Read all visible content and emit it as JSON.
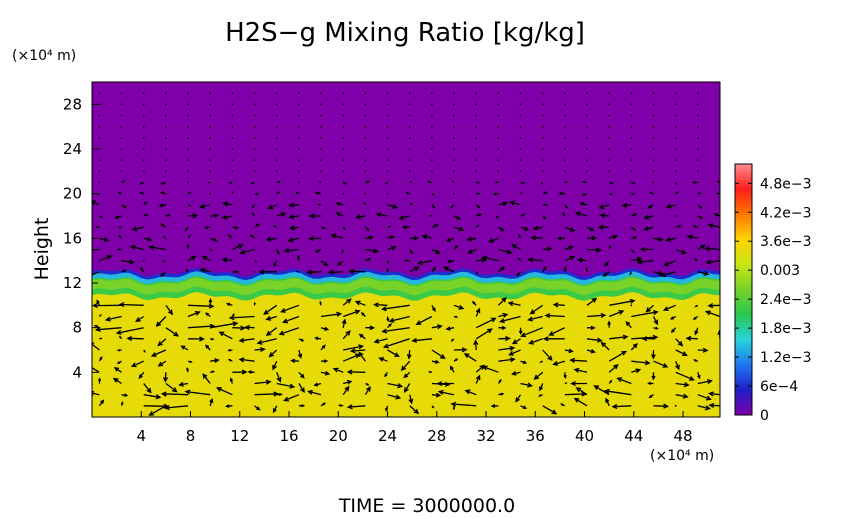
{
  "chart_data": {
    "type": "heatmap",
    "title": "H2S−g Mixing Ratio [kg/kg]",
    "ylabel": "Height",
    "yunit": "(×10⁴ m)",
    "xunit": "(×10⁴ m)",
    "footer": "TIME  =  3000000.0",
    "xlim": [
      0,
      51
    ],
    "ylim": [
      0,
      30
    ],
    "xticks": [
      4,
      8,
      12,
      16,
      20,
      24,
      28,
      32,
      36,
      40,
      44,
      48
    ],
    "yticks": [
      4,
      8,
      12,
      16,
      20,
      24,
      28
    ],
    "grid": false,
    "colorbar": {
      "range": [
        0,
        0.0052
      ],
      "ticks": [
        {
          "value": 0,
          "label": "0"
        },
        {
          "value": 0.0006,
          "label": "6e−4"
        },
        {
          "value": 0.0012,
          "label": "1.2e−3"
        },
        {
          "value": 0.0018,
          "label": "1.8e−3"
        },
        {
          "value": 0.0024,
          "label": "2.4e−3"
        },
        {
          "value": 0.003,
          "label": "0.003"
        },
        {
          "value": 0.0036,
          "label": "3.6e−3"
        },
        {
          "value": 0.0042,
          "label": "4.2e−3"
        },
        {
          "value": 0.0048,
          "label": "4.8e−3"
        }
      ],
      "colors": [
        "#7f00a8",
        "#1e1ec8",
        "#1e78f0",
        "#28d2dc",
        "#28c850",
        "#78d228",
        "#c8e614",
        "#ffd200",
        "#ff7800",
        "#ff1e1e",
        "#ff8c8c"
      ]
    },
    "field": {
      "description": "upper layer ~0 (purple); interface near height 12.6; below ~0.0034 (yellow-green)",
      "interface_height": 12.6,
      "upper_value": 0.0,
      "lower_value": 0.0034,
      "transition_value": 0.0022
    },
    "vectors": {
      "lower_layer_rows": [
        1,
        2,
        3,
        4,
        5,
        6,
        7,
        8,
        9,
        10
      ],
      "upper_layer_rows": [
        13,
        14,
        15,
        16,
        17,
        18,
        19,
        20,
        21
      ]
    }
  }
}
